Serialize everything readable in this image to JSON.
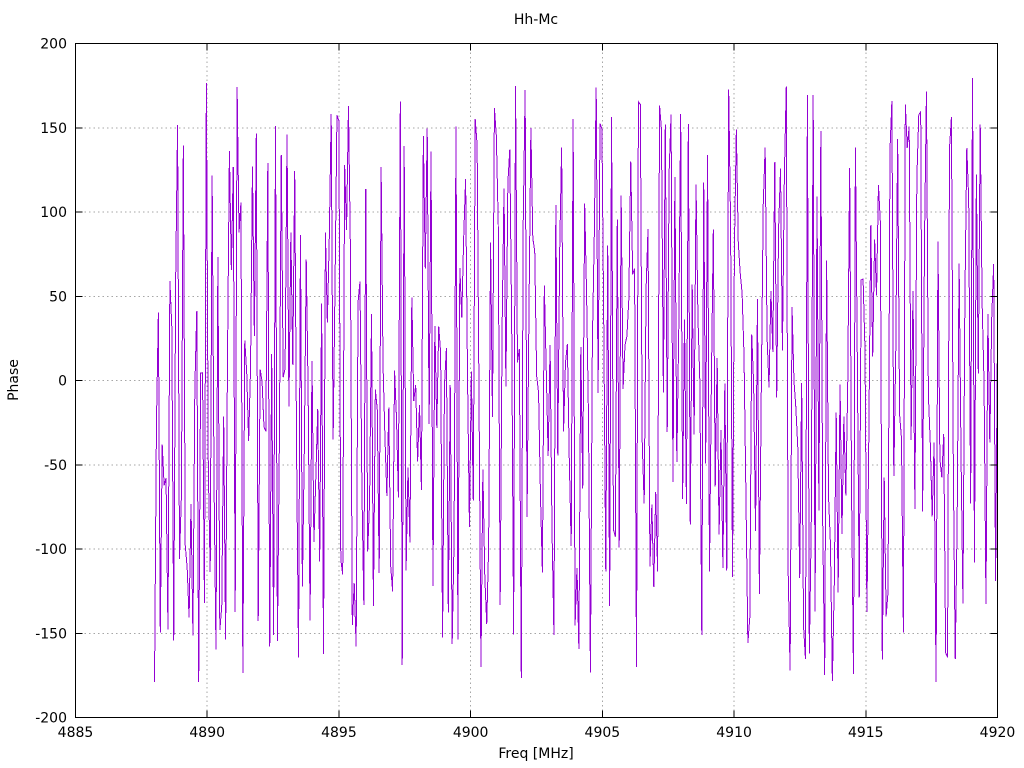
{
  "chart_data": {
    "type": "line",
    "title": "Hh-Mc",
    "xlabel": "Freq [MHz]",
    "ylabel": "Phase",
    "xlim": [
      4885,
      4920
    ],
    "ylim": [
      -200,
      200
    ],
    "xticks": [
      4885,
      4890,
      4895,
      4900,
      4905,
      4910,
      4915,
      4920
    ],
    "yticks": [
      -200,
      -150,
      -100,
      -50,
      0,
      50,
      100,
      150,
      200
    ],
    "grid": true,
    "grid_style": "dotted",
    "legend": "none",
    "colors": {
      "background": "#ffffff",
      "border": "#000000",
      "grid": "#a6a6a6",
      "line": "#9400d3",
      "text": "#000000"
    },
    "series": [
      {
        "name": "Hh-Mc",
        "x_start": 4888.0,
        "x_end": 4920.0,
        "n_points": 440,
        "y_distribution": "uniform",
        "y_min": -180,
        "y_max": 180,
        "prng": "mulberry32",
        "seed": 987654,
        "estimated": "wrapped phase noise spanning -180..180 deg; individual samples not resolvable at screen resolution"
      }
    ]
  }
}
